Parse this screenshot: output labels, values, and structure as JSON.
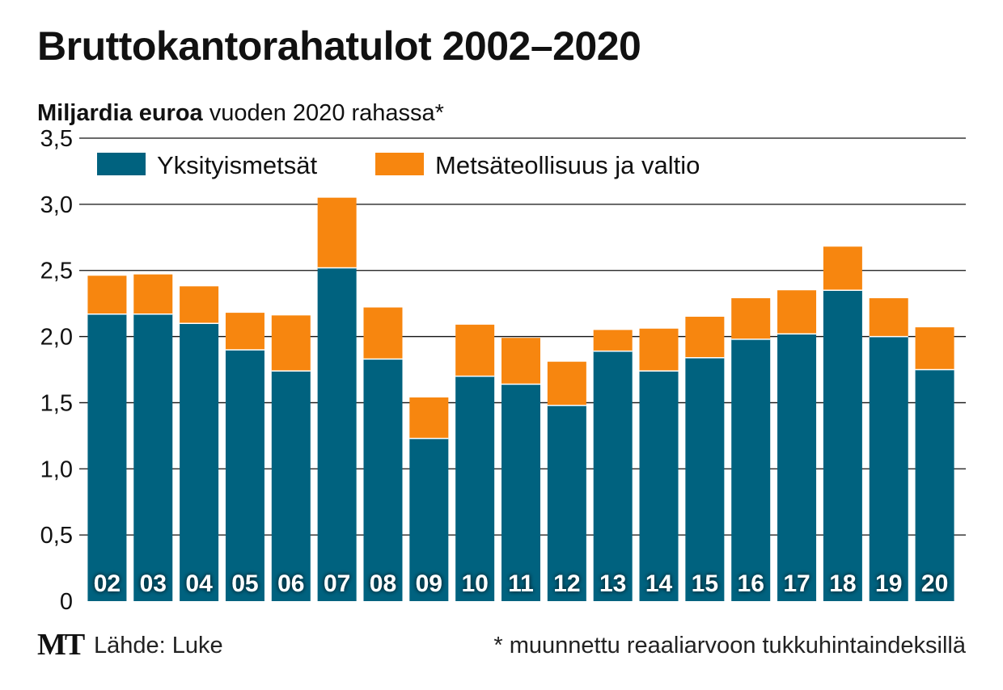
{
  "title": "Bruttokantorahatulot 2002–2020",
  "subtitle": {
    "bold": "Miljardia euroa",
    "rest": " vuoden 2020 rahassa*"
  },
  "footer": {
    "logo": "MT",
    "source": "Lähde: Luke",
    "footnote": "* muunnettu reaaliarvoon tukkuhintaindeksillä"
  },
  "colors": {
    "private": "#00627f",
    "industry": "#f7860f"
  },
  "chart_data": {
    "type": "bar",
    "stacked": true,
    "categories": [
      "02",
      "03",
      "04",
      "05",
      "06",
      "07",
      "08",
      "09",
      "10",
      "11",
      "12",
      "13",
      "14",
      "15",
      "16",
      "17",
      "18",
      "19",
      "20"
    ],
    "series": [
      {
        "name": "Yksityismetsät",
        "values": [
          2.17,
          2.17,
          2.1,
          1.9,
          1.74,
          2.52,
          1.83,
          1.23,
          1.7,
          1.64,
          1.48,
          1.89,
          1.74,
          1.84,
          1.98,
          2.02,
          2.35,
          2.0,
          1.75
        ]
      },
      {
        "name": "Metsäteollisuus ja valtio",
        "values": [
          0.29,
          0.3,
          0.28,
          0.28,
          0.42,
          0.53,
          0.39,
          0.31,
          0.39,
          0.35,
          0.33,
          0.16,
          0.32,
          0.31,
          0.31,
          0.33,
          0.33,
          0.29,
          0.32
        ]
      }
    ],
    "y_ticks": [
      "0",
      "0,5",
      "1,0",
      "1,5",
      "2,0",
      "2,5",
      "3,0",
      "3,5"
    ],
    "ylim": [
      0,
      3.5
    ],
    "legend_position": "top-left",
    "grid": true
  }
}
